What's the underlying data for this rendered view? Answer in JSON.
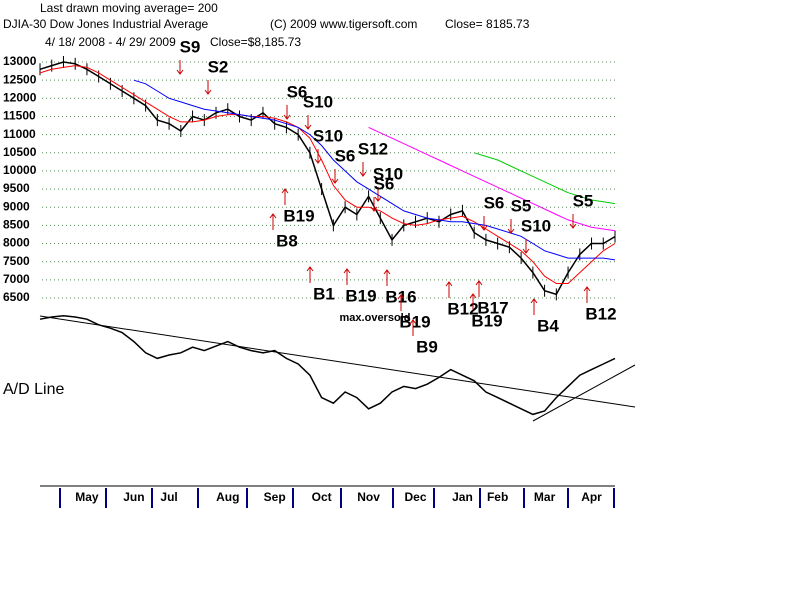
{
  "header": {
    "ma_note": "Last drawn moving average= 200",
    "symbol": "DJIA-30  Dow Jones Industrial Average",
    "copyright": "(C) 2009 www.tigersoft.com",
    "close": "Close=  8185.73",
    "range": "4/ 18/ 2008 -  4/ 29/ 2009",
    "close2": "Close=$8,185.73"
  },
  "chart_data": [
    {
      "type": "line",
      "categories": [
        null,
        null,
        null,
        null,
        "May",
        null,
        null,
        null,
        "Jun",
        null,
        null,
        "Jul",
        null,
        null,
        null,
        null,
        "Aug",
        null,
        null,
        null,
        "Sep",
        null,
        null,
        null,
        "Oct",
        null,
        null,
        null,
        "Nov",
        null,
        null,
        null,
        "Dec",
        null,
        null,
        null,
        "Jan",
        null,
        null,
        "Feb",
        null,
        null,
        null,
        "Mar",
        null,
        null,
        null,
        "Apr",
        null,
        null
      ],
      "series": [
        {
          "color": "#000000",
          "values": [
            12800,
            12900,
            13000,
            12950,
            12800,
            12600,
            12400,
            12200,
            12000,
            11800,
            11400,
            11300,
            11100,
            11500,
            11400,
            11600,
            11700,
            11500,
            11400,
            11600,
            11300,
            11200,
            11000,
            10500,
            9500,
            8500,
            9000,
            8800,
            9300,
            8700,
            8100,
            8500,
            8600,
            8700,
            8600,
            8800,
            8900,
            8300,
            8100,
            8000,
            7900,
            7600,
            7200,
            6700,
            6600,
            7200,
            7700,
            8000,
            8000,
            8190
          ]
        },
        {
          "color": "#ff0000",
          "values": [
            12700,
            12800,
            12850,
            12900,
            12850,
            12700,
            12500,
            12300,
            12100,
            11900,
            11700,
            11500,
            11350,
            11350,
            11400,
            11500,
            11550,
            11550,
            11500,
            11500,
            11450,
            11350,
            11200,
            10900,
            10300,
            9600,
            9200,
            9000,
            9000,
            8900,
            8700,
            8550,
            8500,
            8550,
            8650,
            8700,
            8750,
            8600,
            8400,
            8200,
            8000,
            7800,
            7500,
            7100,
            6900,
            6900,
            7200,
            7500,
            7800,
            8000
          ]
        },
        {
          "color": "#0000ff",
          "values": [
            null,
            null,
            null,
            null,
            null,
            null,
            null,
            null,
            12500,
            12400,
            12200,
            12000,
            11900,
            11800,
            11700,
            11650,
            11600,
            11550,
            11500,
            11450,
            11400,
            11300,
            11200,
            11000,
            10700,
            10300,
            10000,
            9700,
            9500,
            9300,
            9100,
            8900,
            8800,
            8700,
            8650,
            8600,
            8600,
            8550,
            8500,
            8400,
            8300,
            8200,
            8000,
            7800,
            7700,
            7600,
            7600,
            7600,
            7600,
            7550
          ]
        },
        {
          "color": "#ff00ff",
          "values": [
            null,
            null,
            null,
            null,
            null,
            null,
            null,
            null,
            null,
            null,
            null,
            null,
            null,
            null,
            null,
            null,
            null,
            null,
            null,
            null,
            null,
            null,
            null,
            null,
            null,
            null,
            null,
            null,
            11200,
            11050,
            10900,
            10750,
            10600,
            10450,
            10300,
            10150,
            10000,
            9850,
            9700,
            9550,
            9400,
            9250,
            9100,
            8950,
            8800,
            8650,
            8550,
            8450,
            8400,
            8350
          ]
        },
        {
          "color": "#00cc00",
          "values": [
            null,
            null,
            null,
            null,
            null,
            null,
            null,
            null,
            null,
            null,
            null,
            null,
            null,
            null,
            null,
            null,
            null,
            null,
            null,
            null,
            null,
            null,
            null,
            null,
            null,
            null,
            null,
            null,
            null,
            null,
            null,
            null,
            null,
            null,
            null,
            null,
            null,
            10500,
            10400,
            10300,
            10150,
            10000,
            9850,
            9700,
            9550,
            9400,
            9300,
            9200,
            9150,
            9100
          ]
        }
      ],
      "ylim": [
        6500,
        13000
      ],
      "yticks": [
        6500,
        7000,
        7500,
        8000,
        8500,
        9000,
        9500,
        10000,
        10500,
        11000,
        11500,
        12000,
        12500,
        13000
      ],
      "grid": true,
      "annotations": [
        "S9",
        "S2",
        "S6",
        "S10",
        "S10",
        "S6",
        "S12",
        "S10",
        "S6",
        "S6",
        "S5",
        "S10",
        "S5",
        "B19",
        "B8",
        "B1",
        "B19",
        "B16",
        "B19",
        "B9",
        "B12",
        "B17",
        "B19",
        "B4",
        "B12",
        "max.oversold"
      ]
    },
    {
      "type": "line",
      "title": "A/D Line",
      "series": [
        {
          "color": "#000000",
          "values": [
            90,
            92,
            93,
            92,
            90,
            85,
            82,
            78,
            70,
            60,
            55,
            58,
            60,
            65,
            62,
            66,
            70,
            65,
            62,
            60,
            62,
            55,
            50,
            40,
            20,
            15,
            25,
            20,
            10,
            15,
            25,
            30,
            28,
            32,
            38,
            45,
            40,
            35,
            25,
            20,
            15,
            10,
            5,
            8,
            20,
            30,
            40,
            45,
            50,
            55
          ]
        }
      ],
      "ylim": [
        0,
        100
      ]
    }
  ]
}
